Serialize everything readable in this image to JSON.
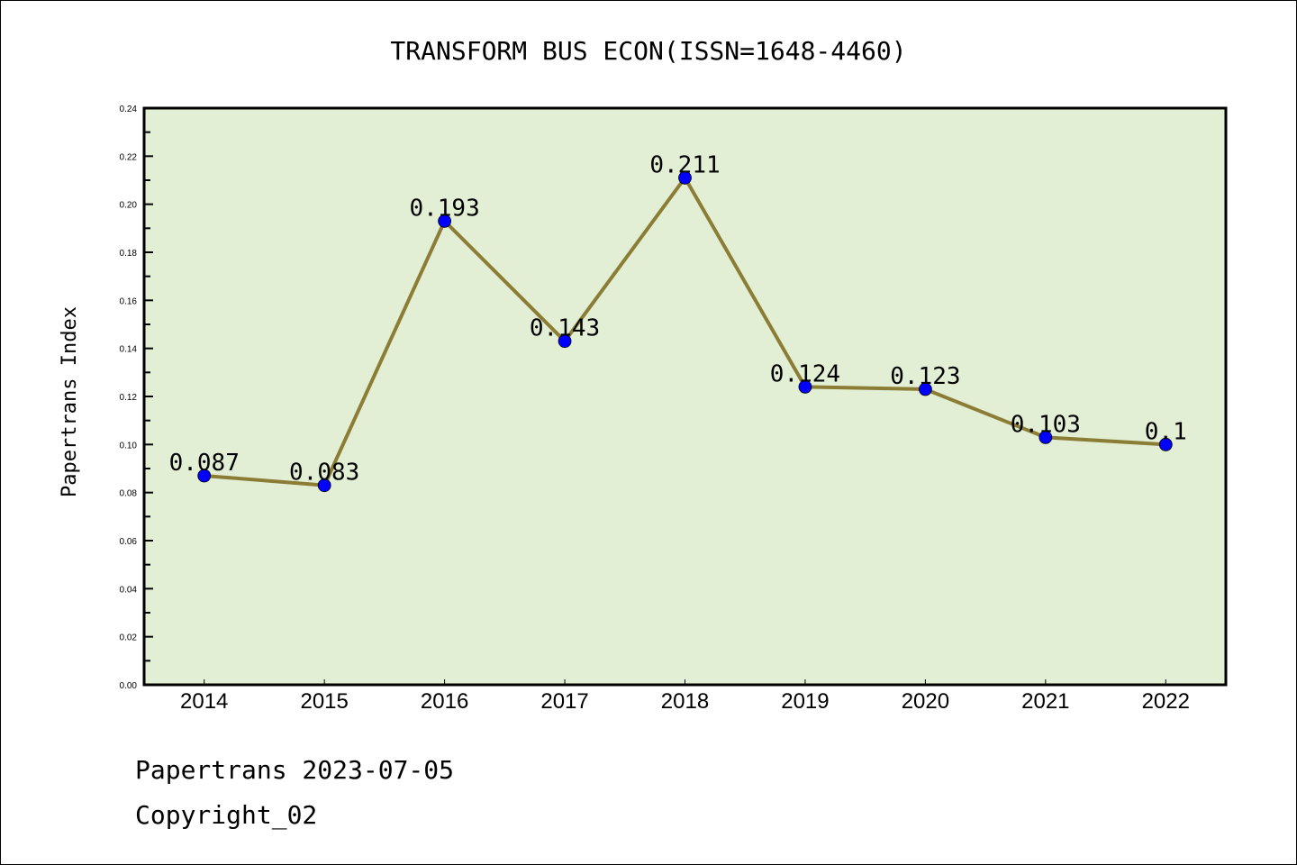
{
  "chart_data": {
    "type": "line",
    "title": "TRANSFORM BUS ECON(ISSN=1648-4460)",
    "xlabel": "",
    "ylabel": "Papertrans Index",
    "x": [
      2014,
      2015,
      2016,
      2017,
      2018,
      2019,
      2020,
      2021,
      2022
    ],
    "categories": [
      "2014",
      "2015",
      "2016",
      "2017",
      "2018",
      "2019",
      "2020",
      "2021",
      "2022"
    ],
    "values": [
      0.087,
      0.083,
      0.193,
      0.143,
      0.211,
      0.124,
      0.123,
      0.103,
      0.1
    ],
    "data_labels": [
      "0.087",
      "0.083",
      "0.193",
      "0.143",
      "0.211",
      "0.124",
      "0.123",
      "0.103",
      "0.1"
    ],
    "xlim": [
      2013.5,
      2022.5
    ],
    "ylim": [
      0,
      0.24
    ],
    "yticks": [
      "0.00",
      "0.02",
      "0.04",
      "0.06",
      "0.08",
      "0.10",
      "0.12",
      "0.14",
      "0.16",
      "0.18",
      "0.20",
      "0.22",
      "0.24"
    ],
    "grid": false,
    "line_color": "#8b7d35",
    "marker_color": "#0000ff",
    "plot_bg": "#e2efd4"
  },
  "footer": {
    "line1": "Papertrans 2023-07-05",
    "line2": "Copyright_02"
  }
}
